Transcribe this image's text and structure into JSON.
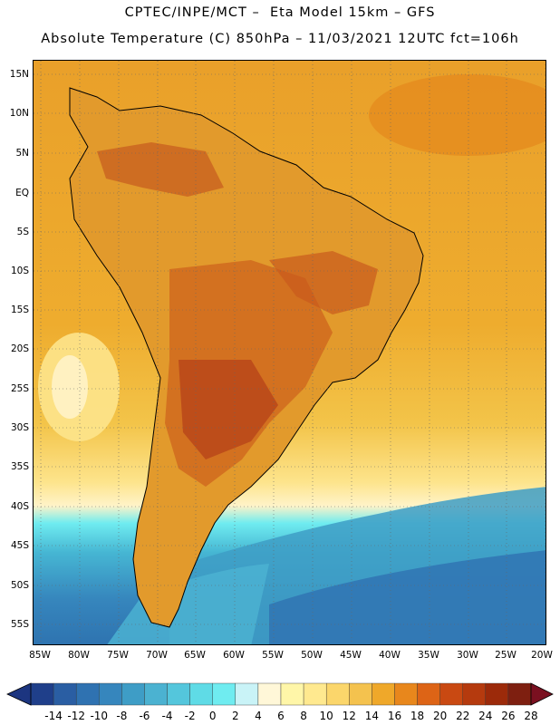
{
  "header": {
    "line1": "CPTEC/INPE/MCT –  Eta Model 15km – GFS",
    "line2": "Absolute Temperature (C) 850hPa – 11/03/2021 12UTC fct=106h"
  },
  "map": {
    "lat_labels": [
      "15N",
      "10N",
      "5N",
      "EQ",
      "5S",
      "10S",
      "15S",
      "20S",
      "25S",
      "30S",
      "35S",
      "40S",
      "45S",
      "50S",
      "55S"
    ],
    "lon_labels": [
      "85W",
      "80W",
      "75W",
      "70W",
      "65W",
      "60W",
      "55W",
      "50W",
      "45W",
      "40W",
      "35W",
      "30W",
      "25W",
      "20W"
    ]
  },
  "colorbar": {
    "values": [
      "-14",
      "-12",
      "-10",
      "-8",
      "-6",
      "-4",
      "-2",
      "0",
      "2",
      "4",
      "6",
      "8",
      "10",
      "12",
      "14",
      "16",
      "18",
      "20",
      "22",
      "24",
      "26",
      "28"
    ],
    "colors": [
      "#1f3f8a",
      "#2a5ea3",
      "#2f72b1",
      "#3686bd",
      "#3e9dc6",
      "#4bb2d1",
      "#54c6dc",
      "#5fdbe6",
      "#6fecf0",
      "#c9f3f7",
      "#fff7d8",
      "#fff6a8",
      "#ffe98f",
      "#fbd66b",
      "#f4c24e",
      "#efa82a",
      "#e8871c",
      "#dd6416",
      "#c94912",
      "#b53a0e",
      "#9c2a0a",
      "#7e1f10"
    ],
    "ocean_colors": {
      "warm": "#eca227",
      "mid": "#f3c449",
      "cool": "#fde48c",
      "cold": "#46a6c8",
      "deep": "#2e73b0"
    }
  }
}
